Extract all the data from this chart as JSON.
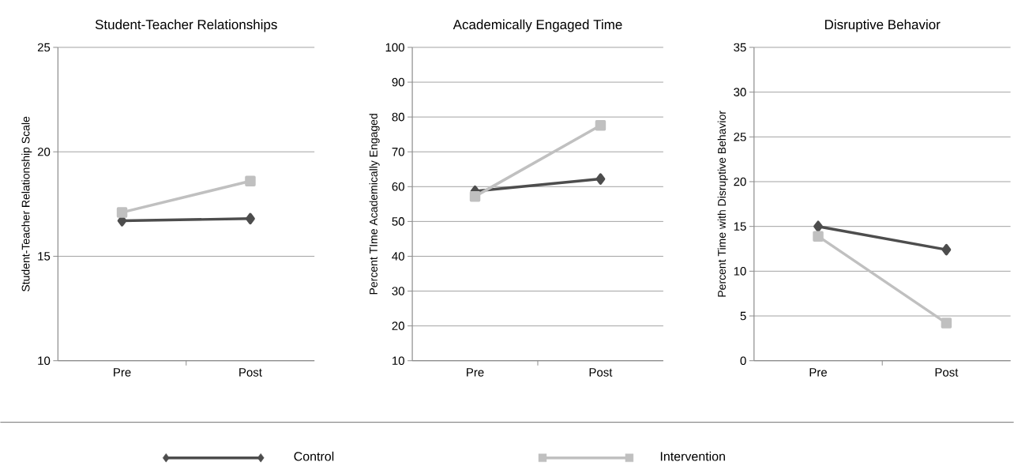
{
  "chart_data": [
    {
      "type": "line",
      "title": "Student-Teacher Relationships",
      "ylabel": "Student-Teacher Relationship Scale",
      "categories": [
        "Pre",
        "Post"
      ],
      "ylim": [
        10,
        25
      ],
      "yticks": [
        10,
        15,
        20,
        25
      ],
      "grid": "y",
      "legend": "bottom",
      "series": [
        {
          "name": "Control",
          "color": "#4d4d4d",
          "marker": "diamond",
          "values": [
            16.7,
            16.8
          ]
        },
        {
          "name": "Intervention",
          "color": "#c0c0c0",
          "marker": "square",
          "values": [
            17.1,
            18.6
          ]
        }
      ]
    },
    {
      "type": "line",
      "title": "Academically Engaged Time",
      "ylabel": "Percent TIme Academically Engaged",
      "categories": [
        "Pre",
        "Post"
      ],
      "ylim": [
        10,
        100
      ],
      "yticks": [
        10,
        20,
        30,
        40,
        50,
        60,
        70,
        80,
        90,
        100
      ],
      "grid": "y",
      "series": [
        {
          "color": "#4d4d4d",
          "marker": "diamond",
          "values": [
            58.7,
            62.2
          ]
        },
        {
          "color": "#c0c0c0",
          "marker": "square",
          "values": [
            57.2,
            77.6
          ]
        }
      ]
    },
    {
      "type": "line",
      "title": "Disruptive Behavior",
      "ylabel": "Percent Time with Disruptive Behavior",
      "categories": [
        "Pre",
        "Post"
      ],
      "ylim": [
        0,
        35
      ],
      "yticks": [
        0,
        5,
        10,
        15,
        20,
        25,
        30,
        35
      ],
      "grid": "y",
      "series": [
        {
          "color": "#4d4d4d",
          "marker": "diamond",
          "values": [
            15.0,
            12.4
          ]
        },
        {
          "color": "#c0c0c0",
          "marker": "square",
          "values": [
            13.9,
            4.2
          ]
        }
      ]
    }
  ]
}
